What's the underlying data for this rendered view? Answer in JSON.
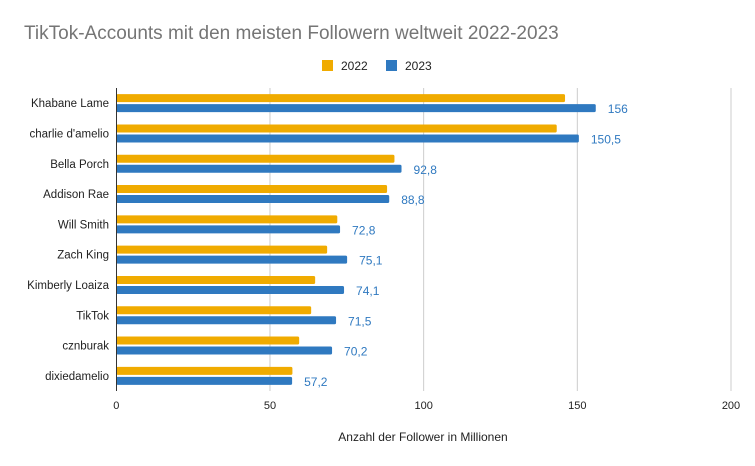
{
  "chart_data": {
    "type": "bar",
    "orientation": "horizontal",
    "title": "TikTok-Accounts mit den meisten Followern weltweit 2022-2023",
    "xlabel": "Anzahl der Follower in Millionen",
    "ylabel": "",
    "xlim": [
      0,
      200
    ],
    "xticks": [
      "0",
      "50",
      "100",
      "150",
      "200"
    ],
    "grid": true,
    "legend_position": "top",
    "categories": [
      "Khabane Lame",
      "charlie d'amelio",
      "Bella Porch",
      "Addison Rae",
      "Will Smith",
      "Zach King",
      "Kimberly Loaiza",
      "TikTok",
      "cznburak",
      "dixiedamelio"
    ],
    "series": [
      {
        "name": "2022",
        "color": "#f0ab00",
        "values": [
          146,
          143.3,
          90.5,
          88.1,
          71.9,
          68.6,
          64.7,
          63.4,
          59.5,
          57.3
        ],
        "data_labels": []
      },
      {
        "name": "2023",
        "color": "#2f79c0",
        "values": [
          156,
          150.5,
          92.8,
          88.8,
          72.8,
          75.1,
          74.1,
          71.5,
          70.2,
          57.2
        ],
        "data_labels": [
          "156",
          "150,5",
          "92,8",
          "88,8",
          "72,8",
          "75,1",
          "74,1",
          "71,5",
          "70,2",
          "57,2"
        ]
      }
    ]
  }
}
